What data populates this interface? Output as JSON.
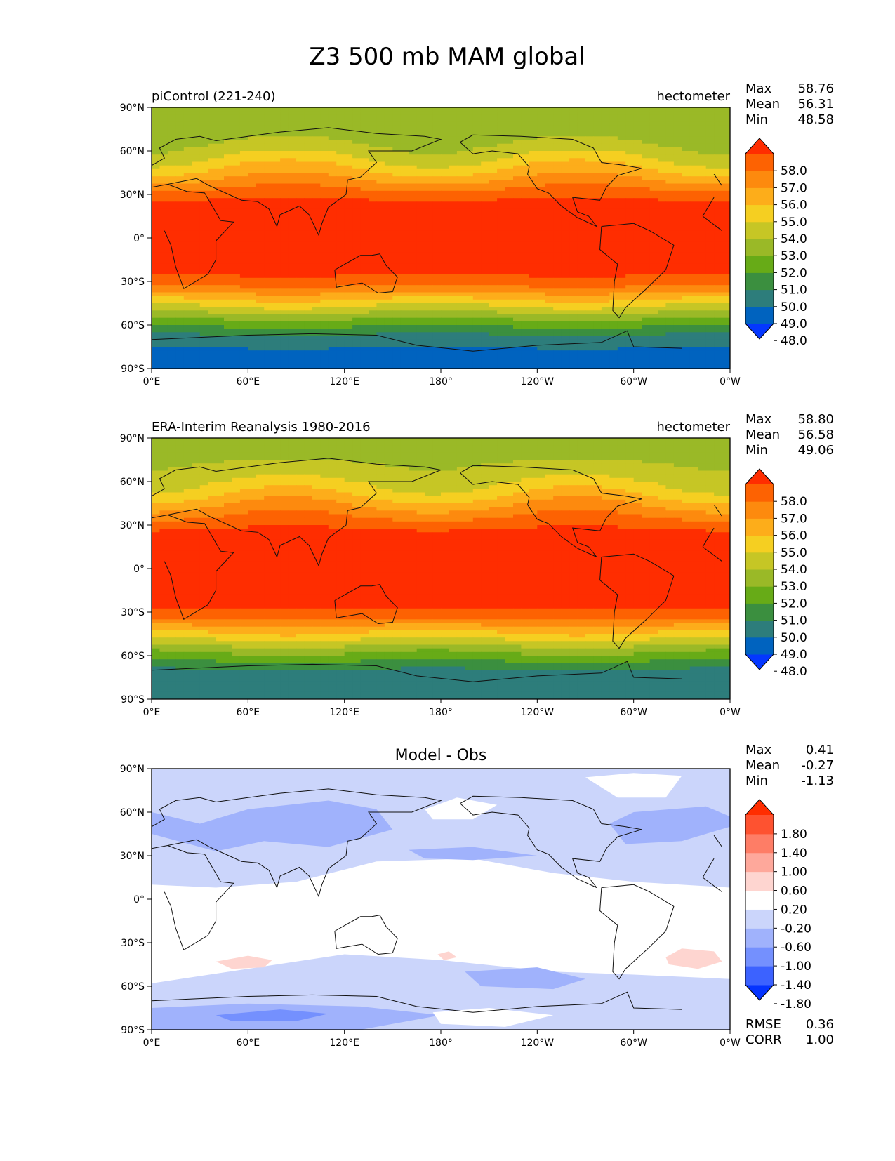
{
  "figure": {
    "title": "Z3 500 mb MAM global"
  },
  "lat_ticks": [
    "90°N",
    "60°N",
    "30°N",
    "0°",
    "30°S",
    "60°S",
    "90°S"
  ],
  "lon_ticks": [
    "0°E",
    "60°E",
    "120°E",
    "180°",
    "120°W",
    "60°W",
    "0°W"
  ],
  "stat_labels": {
    "max": "Max",
    "mean": "Mean",
    "min": "Min",
    "rmse": "RMSE",
    "corr": "CORR"
  },
  "colors": {
    "field_levels": [
      "#0437ff",
      "#0063bf",
      "#2d7d7b",
      "#3b8f3f",
      "#67ab17",
      "#9ab927",
      "#c6c625",
      "#f5cf21",
      "#fdad1a",
      "#fd8a0e",
      "#fd6202",
      "#ff2d00"
    ],
    "diff_levels": [
      "#0433ff",
      "#3c62ff",
      "#7490fe",
      "#a0b2fc",
      "#cbd5fb",
      "#ffffff",
      "#fed5d0",
      "#fea89b",
      "#fe7d66",
      "#fe5230",
      "#ff2d00"
    ]
  },
  "chart_data": [
    {
      "type": "heatmap",
      "title": "piControl (221-240)",
      "units": "hectometer",
      "stats": {
        "max": "58.76",
        "mean": "56.31",
        "min": "48.58"
      },
      "colorbar_ticks": [
        "58.0",
        "57.0",
        "56.0",
        "55.0",
        "54.0",
        "53.0",
        "52.0",
        "51.0",
        "50.0",
        "49.0",
        "48.0"
      ],
      "x_range": [
        0,
        360
      ],
      "y_range": [
        -90,
        90
      ],
      "zonal_mean_profile": {
        "lat": [
          90,
          75,
          65,
          55,
          45,
          35,
          25,
          15,
          0,
          -15,
          -25,
          -32,
          -40,
          -48,
          -55,
          -62,
          -70,
          -80,
          -90
        ],
        "value": [
          52.1,
          52.5,
          53.0,
          54.0,
          55.3,
          56.8,
          58.2,
          58.6,
          58.7,
          58.5,
          58.1,
          57.3,
          55.5,
          53.8,
          52.2,
          50.8,
          49.4,
          48.7,
          48.6
        ]
      }
    },
    {
      "type": "heatmap",
      "title": "ERA-Interim Reanalysis 1980-2016",
      "units": "hectometer",
      "stats": {
        "max": "58.80",
        "mean": "56.58",
        "min": "49.06"
      },
      "colorbar_ticks": [
        "58.0",
        "57.0",
        "56.0",
        "55.0",
        "54.0",
        "53.0",
        "52.0",
        "51.0",
        "50.0",
        "49.0",
        "48.0"
      ],
      "x_range": [
        0,
        360
      ],
      "y_range": [
        -90,
        90
      ],
      "zonal_mean_profile": {
        "lat": [
          90,
          75,
          65,
          55,
          45,
          35,
          25,
          15,
          0,
          -15,
          -25,
          -32,
          -40,
          -48,
          -55,
          -62,
          -70,
          -80,
          -90
        ],
        "value": [
          52.4,
          52.9,
          53.5,
          54.4,
          55.7,
          57.1,
          58.3,
          58.7,
          58.8,
          58.6,
          58.2,
          57.6,
          55.9,
          54.2,
          52.6,
          51.3,
          49.9,
          49.3,
          49.1
        ]
      }
    },
    {
      "type": "heatmap",
      "title": "Model - Obs",
      "units": "",
      "stats": {
        "max": "0.41",
        "mean": "-0.27",
        "min": "-1.13",
        "rmse": "0.36",
        "corr": "1.00"
      },
      "colorbar_ticks": [
        "1.80",
        "1.40",
        "1.00",
        "0.60",
        "0.20",
        "-0.20",
        "-0.60",
        "-1.00",
        "-1.40",
        "-1.80"
      ],
      "x_range": [
        0,
        360
      ],
      "y_range": [
        -90,
        90
      ]
    }
  ]
}
